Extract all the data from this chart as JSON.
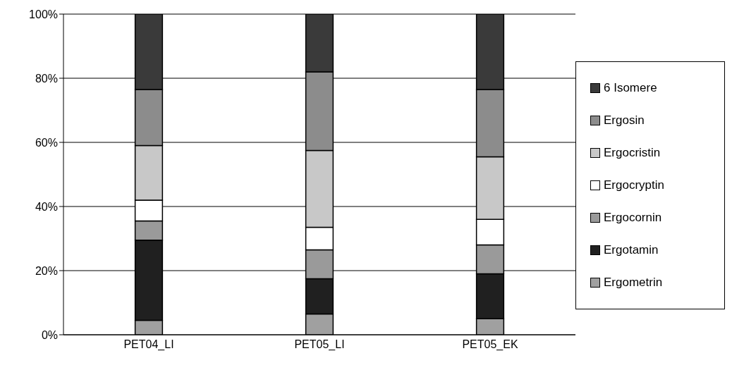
{
  "chart_data": {
    "type": "bar",
    "stacked": true,
    "categories": [
      "PET04_LI",
      "PET05_LI",
      "PET05_EK"
    ],
    "series": [
      {
        "name": "Ergometrin",
        "color": "#a0a0a0",
        "values": [
          4.5,
          6.5,
          5
        ]
      },
      {
        "name": "Ergotamin",
        "color": "#202020",
        "values": [
          25,
          11,
          14
        ]
      },
      {
        "name": "Ergocornin",
        "color": "#9a9a9a",
        "values": [
          6,
          9,
          9
        ]
      },
      {
        "name": "Ergocryptin",
        "color": "#ffffff",
        "values": [
          6.5,
          7,
          8
        ]
      },
      {
        "name": "Ergocristin",
        "color": "#c8c8c8",
        "values": [
          17,
          24,
          19.5
        ]
      },
      {
        "name": "Ergosin",
        "color": "#8c8c8c",
        "values": [
          17.5,
          24.5,
          21
        ]
      },
      {
        "name": "6 Isomere",
        "color": "#3a3a3a",
        "values": [
          23.5,
          18,
          23.5
        ]
      }
    ],
    "ylim": [
      0,
      100
    ],
    "yticks": [
      {
        "value": 0,
        "label": "0%"
      },
      {
        "value": 20,
        "label": "20%"
      },
      {
        "value": 40,
        "label": "40%"
      },
      {
        "value": 60,
        "label": "60%"
      },
      {
        "value": 80,
        "label": "80%"
      },
      {
        "value": 100,
        "label": "100%"
      }
    ],
    "grid": "y",
    "legend": "right"
  }
}
